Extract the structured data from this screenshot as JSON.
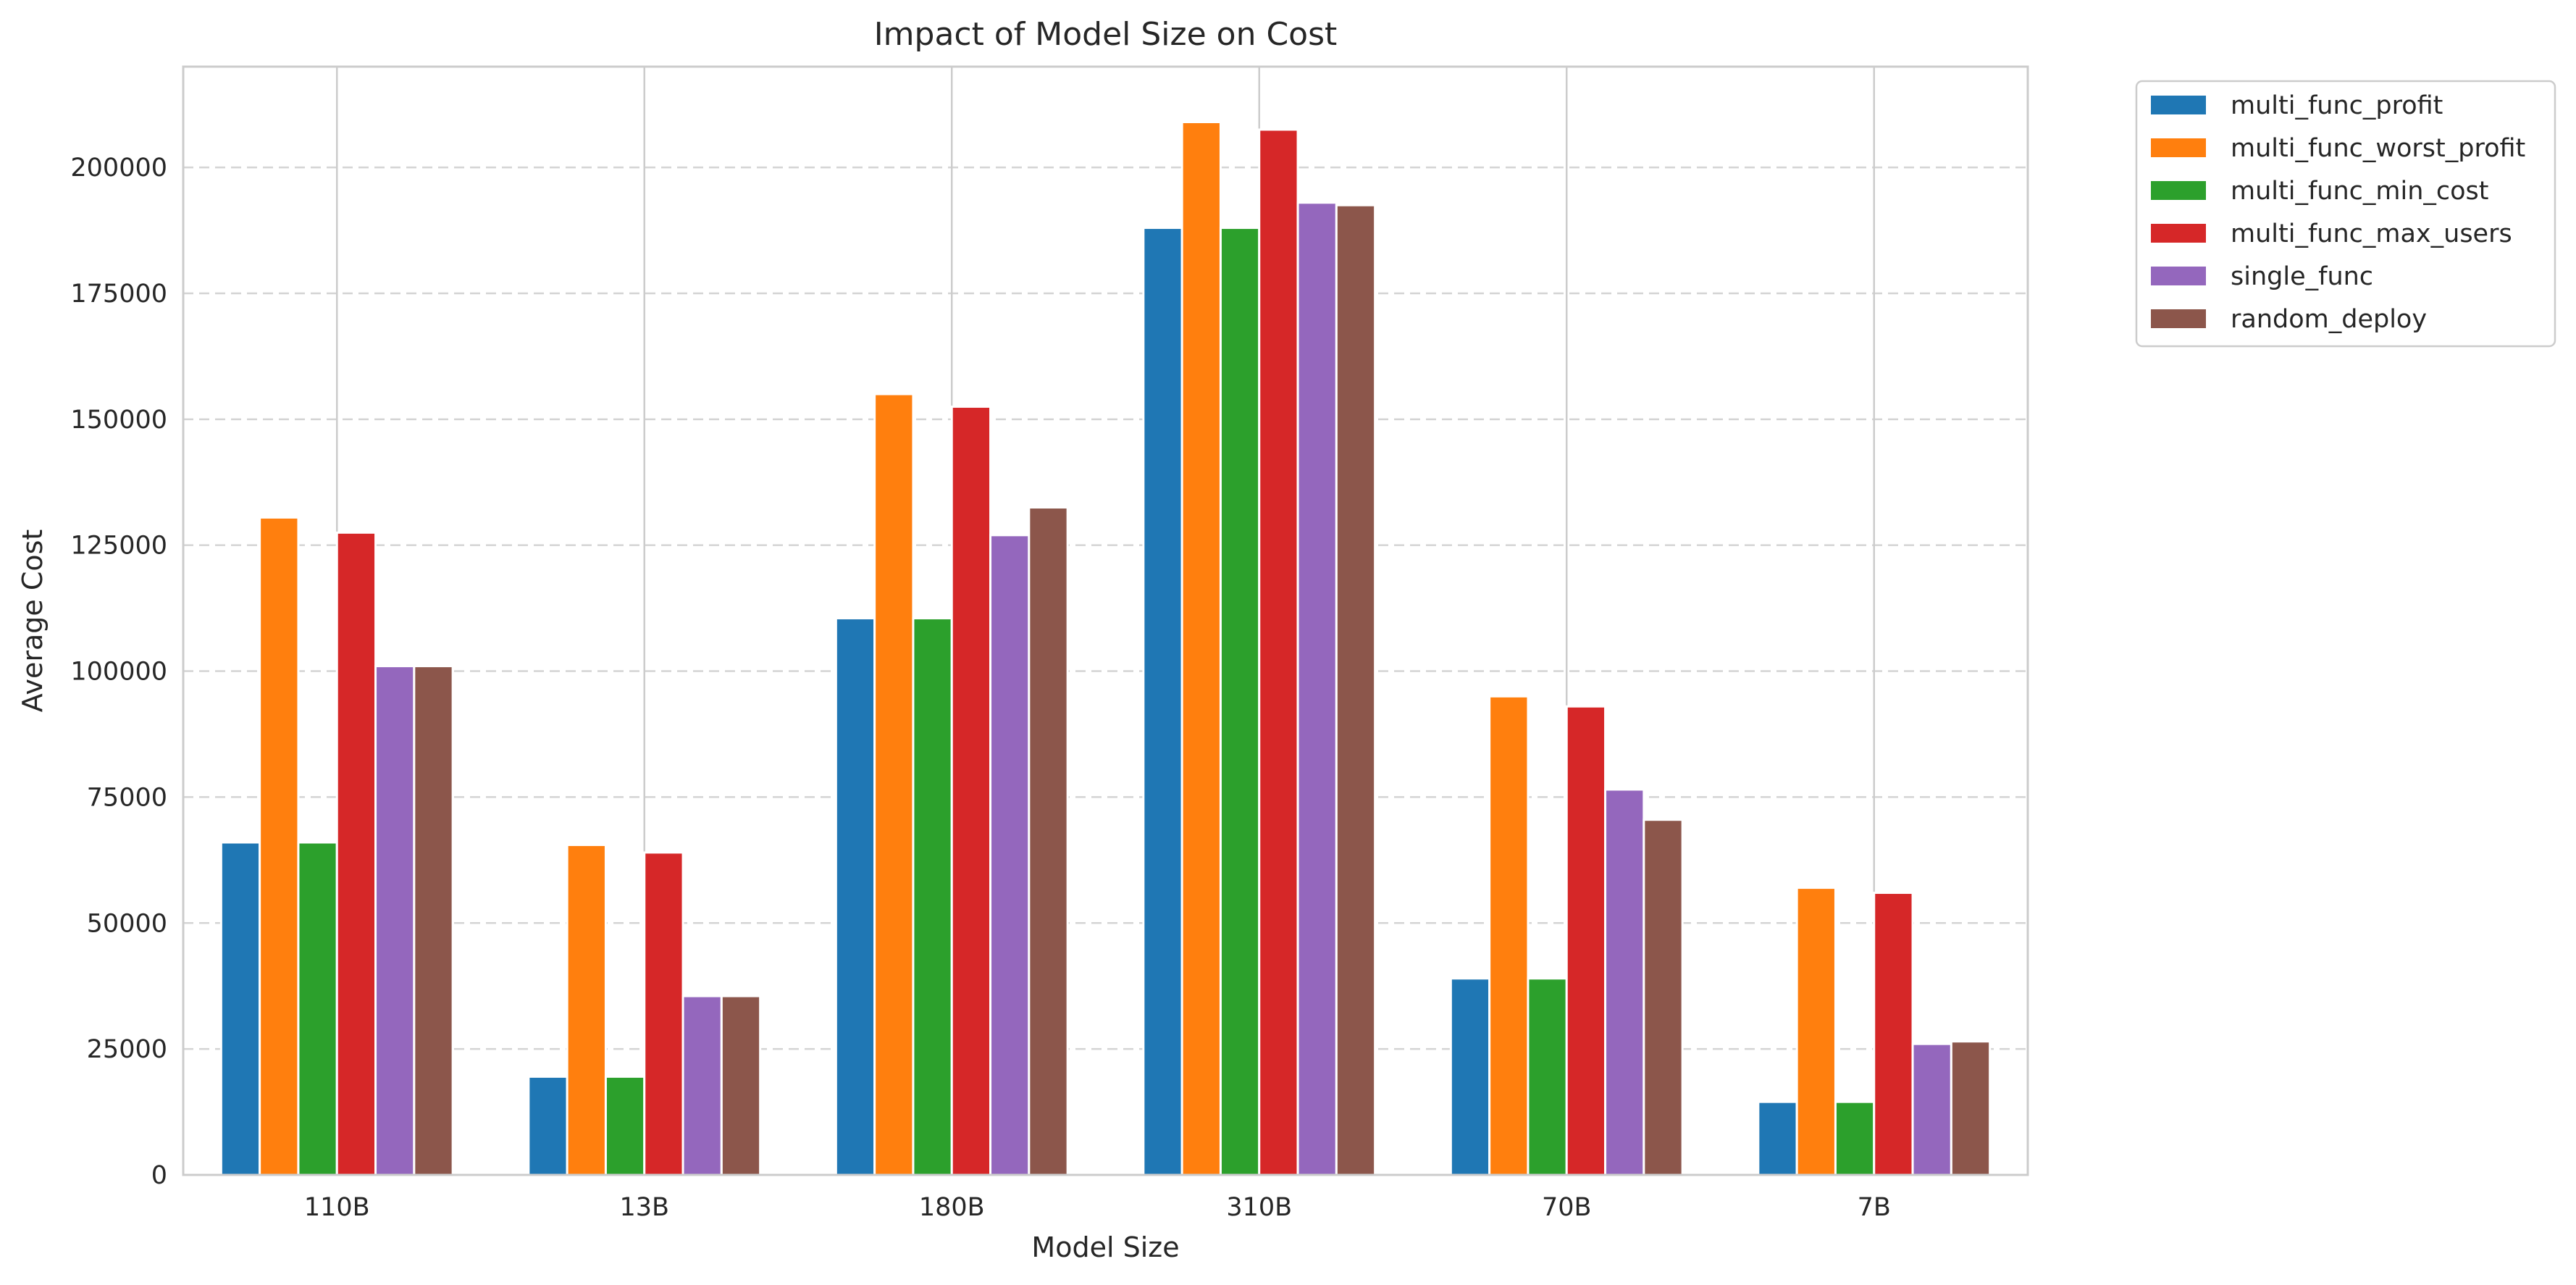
{
  "chart_data": {
    "type": "bar",
    "title": "Impact of Model Size on Cost",
    "xlabel": "Model Size",
    "ylabel": "Average Cost",
    "categories": [
      "110B",
      "13B",
      "180B",
      "310B",
      "70B",
      "7B"
    ],
    "ylim": [
      0,
      220000
    ],
    "yticks": [
      0,
      25000,
      50000,
      75000,
      100000,
      125000,
      150000,
      175000,
      200000
    ],
    "ytick_labels": [
      "0",
      "25000",
      "50000",
      "75000",
      "100000",
      "125000",
      "150000",
      "175000",
      "200000"
    ],
    "grid": "horizontal dashed",
    "legend_position": "outside top-right",
    "series": [
      {
        "name": "multi_func_profit",
        "color": "#1f77b4",
        "values": [
          66000,
          19500,
          110500,
          188000,
          39000,
          14500
        ]
      },
      {
        "name": "multi_func_worst_profit",
        "color": "#ff7f0e",
        "values": [
          130500,
          65500,
          155000,
          209000,
          95000,
          57000
        ]
      },
      {
        "name": "multi_func_min_cost",
        "color": "#2ca02c",
        "values": [
          66000,
          19500,
          110500,
          188000,
          39000,
          14500
        ]
      },
      {
        "name": "multi_func_max_users",
        "color": "#d62728",
        "values": [
          127500,
          64000,
          152500,
          207500,
          93000,
          56000
        ]
      },
      {
        "name": "single_func",
        "color": "#9467bd",
        "values": [
          101000,
          35500,
          127000,
          193000,
          76500,
          26000
        ]
      },
      {
        "name": "random_deploy",
        "color": "#8c564b",
        "values": [
          101000,
          35500,
          132500,
          192500,
          70500,
          26500
        ]
      }
    ]
  }
}
